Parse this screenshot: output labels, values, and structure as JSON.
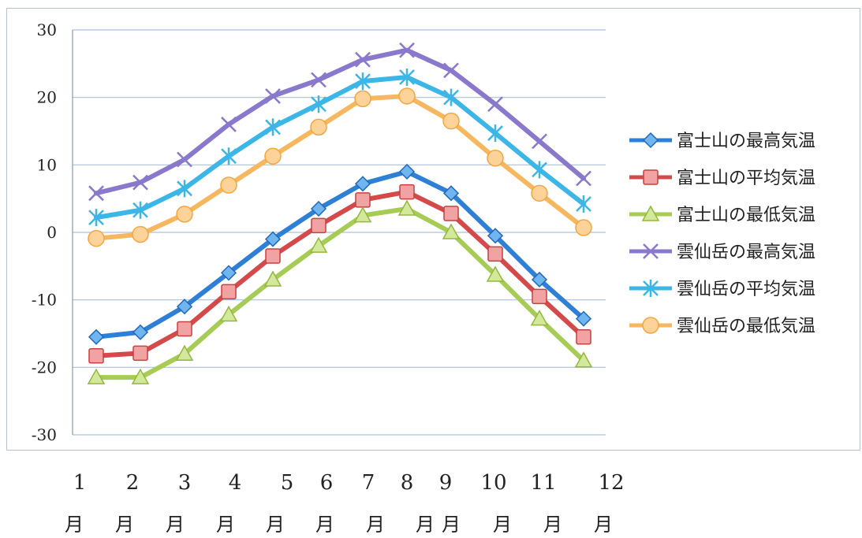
{
  "chart_data": {
    "type": "line",
    "categories": [
      "1",
      "2",
      "3",
      "4",
      "5",
      "6",
      "7",
      "8",
      "9",
      "10",
      "11",
      "12"
    ],
    "category_unit": "月",
    "ylim": [
      -30,
      30
    ],
    "yticks": [
      "30",
      "20",
      "10",
      "0",
      "-10",
      "-20",
      "-30"
    ],
    "grid": true,
    "legend_position": "right",
    "series": [
      {
        "name": "富士山の最高気温",
        "marker": "diamond",
        "color": "#2e7fd6",
        "values": [
          -15.5,
          -14.8,
          -11,
          -6,
          -1,
          3.5,
          7.2,
          9,
          5.8,
          -0.5,
          -7,
          -12.8
        ]
      },
      {
        "name": "富士山の平均気温",
        "marker": "square",
        "color": "#d44a4a",
        "values": [
          -18.3,
          -17.9,
          -14.3,
          -8.8,
          -3.5,
          1,
          4.8,
          6,
          2.8,
          -3.2,
          -9.5,
          -15.5
        ]
      },
      {
        "name": "富士山の最低気温",
        "marker": "triangle",
        "color": "#a7cc55",
        "values": [
          -21.5,
          -21.5,
          -18,
          -12.2,
          -7,
          -2,
          2.5,
          3.5,
          0,
          -6.3,
          -12.8,
          -19
        ]
      },
      {
        "name": "雲仙岳の最高気温",
        "marker": "x",
        "color": "#8a78cc",
        "values": [
          5.8,
          7.4,
          10.8,
          16,
          20.2,
          22.6,
          25.6,
          27,
          24,
          19,
          13.5,
          8
        ]
      },
      {
        "name": "雲仙岳の平均気温",
        "marker": "asterisk",
        "color": "#3cb6e6",
        "values": [
          2.2,
          3.3,
          6.5,
          11.3,
          15.6,
          19,
          22.4,
          23,
          20,
          14.7,
          9.3,
          4.2
        ]
      },
      {
        "name": "雲仙岳の最低気温",
        "marker": "circle",
        "color": "#f7b75e",
        "values": [
          -0.9,
          -0.3,
          2.7,
          7,
          11.3,
          15.6,
          19.8,
          20.2,
          16.5,
          11,
          5.8,
          0.7
        ]
      }
    ]
  }
}
